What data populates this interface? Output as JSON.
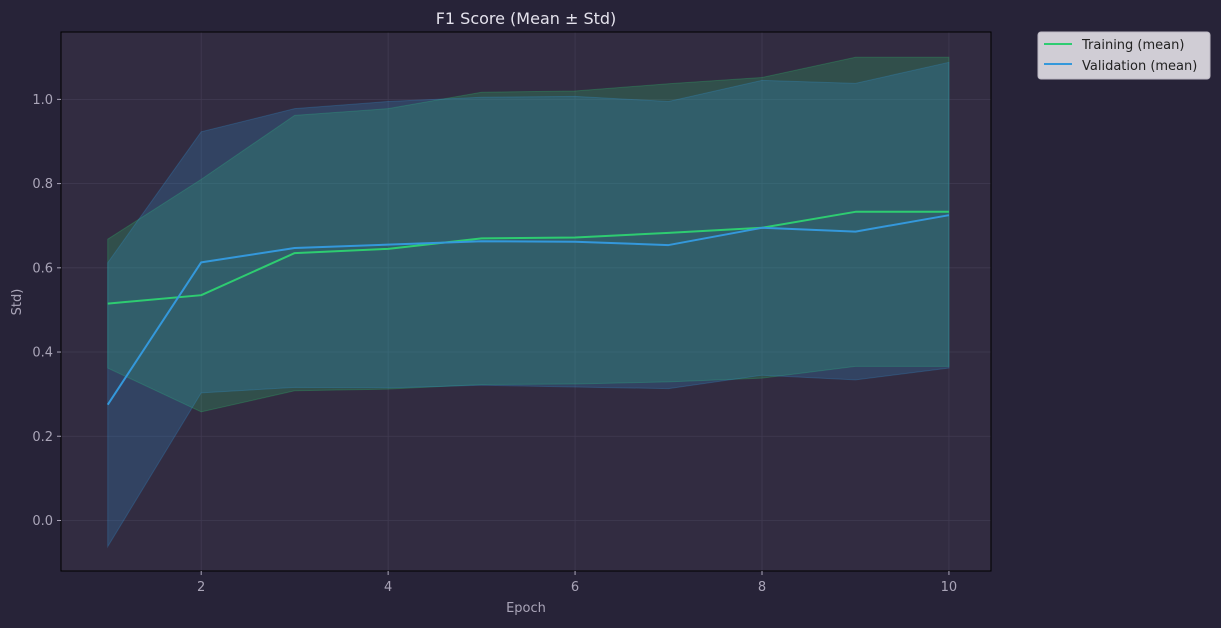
{
  "chart_data": {
    "type": "line",
    "title": "F1 Score (Mean ± Std)",
    "xlabel": "Epoch",
    "ylabel": "Std)",
    "xlim": [
      0.5,
      10.45
    ],
    "ylim": [
      -0.12,
      1.16
    ],
    "xticks": [
      2,
      4,
      6,
      8,
      10
    ],
    "xtick_labels": [
      "2",
      "4",
      "6",
      "8",
      "10"
    ],
    "yticks": [
      0.0,
      0.2,
      0.4,
      0.6,
      0.8,
      1.0
    ],
    "ytick_labels": [
      "0.0",
      "0.2",
      "0.4",
      "0.6",
      "0.8",
      "1.0"
    ],
    "grid": true,
    "legend_position": "outside-top-right",
    "x": [
      1,
      2,
      3,
      4,
      5,
      6,
      7,
      8,
      9,
      10
    ],
    "series": [
      {
        "name": "Training (mean)",
        "color": "#2ecc71",
        "mean": [
          0.515,
          0.535,
          0.635,
          0.645,
          0.67,
          0.672,
          0.683,
          0.695,
          0.733,
          0.733
        ],
        "upper": [
          0.668,
          0.81,
          0.962,
          0.978,
          1.017,
          1.02,
          1.037,
          1.052,
          1.1,
          1.1
        ],
        "lower": [
          0.362,
          0.258,
          0.308,
          0.312,
          0.323,
          0.324,
          0.329,
          0.338,
          0.366,
          0.366
        ]
      },
      {
        "name": "Validation (mean)",
        "color": "#3498db",
        "mean": [
          0.275,
          0.613,
          0.647,
          0.655,
          0.663,
          0.662,
          0.654,
          0.695,
          0.686,
          0.725
        ],
        "upper": [
          0.612,
          0.923,
          0.978,
          0.995,
          1.005,
          1.007,
          0.995,
          1.045,
          1.038,
          1.088
        ],
        "lower": [
          -0.062,
          0.303,
          0.316,
          0.315,
          0.321,
          0.317,
          0.313,
          0.345,
          0.334,
          0.362
        ]
      }
    ]
  },
  "colors": {
    "background": "#272338",
    "plot_background": "#322c41",
    "grid": "#413b52",
    "axis_text": "#aaa5b8",
    "title_text": "#e4e2ec",
    "legend_background": "#d0cdd5",
    "legend_text": "#222222"
  }
}
